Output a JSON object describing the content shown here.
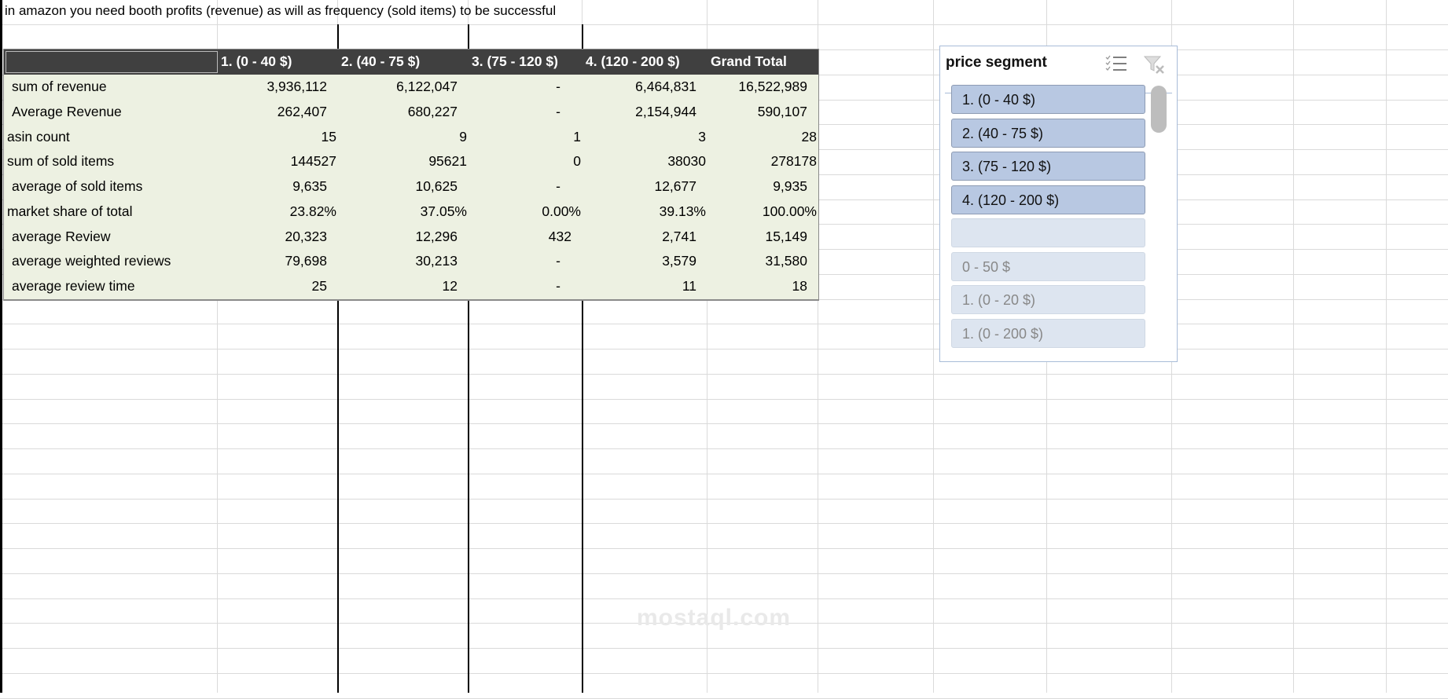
{
  "sheet": {
    "note": "in amazon you need booth profits (revenue) as will as frequency (sold items) to be successful"
  },
  "pivot": {
    "columns": [
      "1. (0 - 40 $)",
      "2. (40 - 75 $)",
      "3. (75 - 120 $)",
      "4. (120 - 200 $)",
      "Grand Total"
    ],
    "rows": [
      {
        "label": " sum of revenue",
        "values": [
          "3,936,112",
          "6,122,047",
          "-",
          "6,464,831",
          "16,522,989"
        ]
      },
      {
        "label": " Average Revenue",
        "values": [
          "262,407",
          "680,227",
          "-",
          "2,154,944",
          "590,107"
        ]
      },
      {
        "label": "asin count",
        "values": [
          "15",
          "9",
          "1",
          "3",
          "28"
        ]
      },
      {
        "label": "sum of sold items",
        "values": [
          "144527",
          "95621",
          "0",
          "38030",
          "278178"
        ]
      },
      {
        "label": " average of sold items",
        "values": [
          "9,635",
          "10,625",
          "-",
          "12,677",
          "9,935"
        ]
      },
      {
        "label": "market share of total",
        "values": [
          "23.82%",
          "37.05%",
          "0.00%",
          "39.13%",
          "100.00%"
        ]
      },
      {
        "label": " average Review",
        "values": [
          "20,323",
          "12,296",
          "432",
          "2,741",
          "15,149"
        ]
      },
      {
        "label": " average weighted reviews",
        "values": [
          "79,698",
          "30,213",
          "-",
          "3,579",
          "31,580"
        ]
      },
      {
        "label": " average review time",
        "values": [
          "25",
          "12",
          "-",
          "11",
          "18"
        ]
      }
    ],
    "header_bg": "#404040",
    "body_bg": "#edf1e2"
  },
  "slicer": {
    "title": "price segment",
    "icons": [
      "multi-select-icon",
      "clear-filter-icon"
    ],
    "items": [
      {
        "label": "1. (0 - 40 $)",
        "selected": true
      },
      {
        "label": "2. (40 - 75 $)",
        "selected": true
      },
      {
        "label": "3. (75 - 120 $)",
        "selected": true
      },
      {
        "label": "4. (120 - 200 $)",
        "selected": true
      },
      {
        "label": "",
        "selected": false
      },
      {
        "label": "0 - 50 $",
        "selected": false
      },
      {
        "label": "1. (0 - 20 $)",
        "selected": false
      },
      {
        "label": "1. (0 - 200 $)",
        "selected": false
      }
    ],
    "selected_color": "#b8c8e2",
    "unselected_color": "#dde5f0"
  },
  "watermark": "mostaql.com"
}
